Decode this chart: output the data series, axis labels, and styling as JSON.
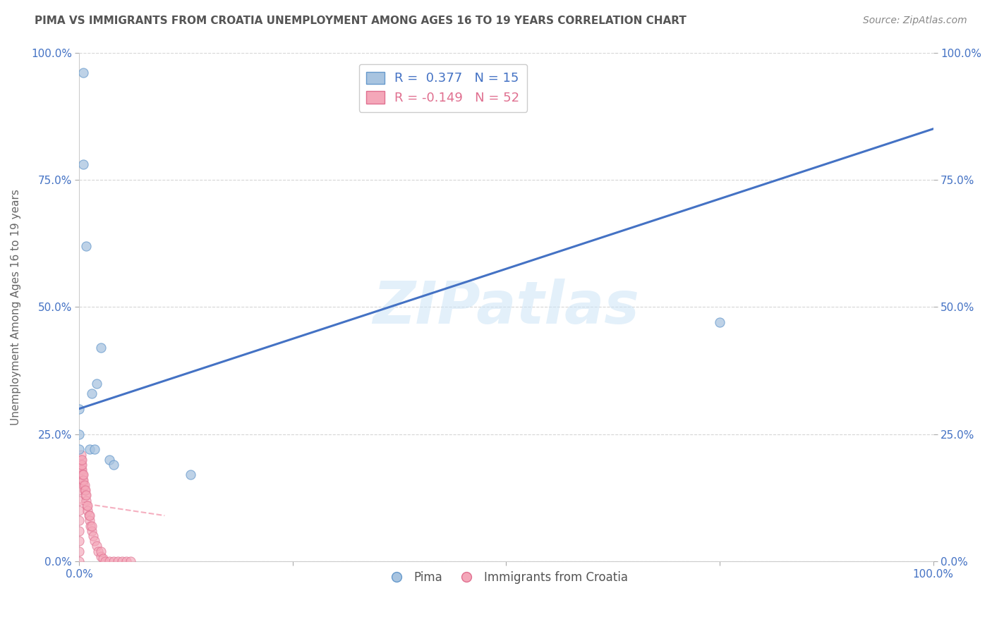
{
  "title": "PIMA VS IMMIGRANTS FROM CROATIA UNEMPLOYMENT AMONG AGES 16 TO 19 YEARS CORRELATION CHART",
  "source": "Source: ZipAtlas.com",
  "ylabel": "Unemployment Among Ages 16 to 19 years",
  "xlim": [
    0.0,
    1.0
  ],
  "ylim": [
    0.0,
    1.0
  ],
  "ytick_labels": [
    "0.0%",
    "25.0%",
    "50.0%",
    "75.0%",
    "100.0%"
  ],
  "ytick_positions": [
    0.0,
    0.25,
    0.5,
    0.75,
    1.0
  ],
  "pima_color": "#a8c4e0",
  "pima_edge_color": "#6699cc",
  "croatia_color": "#f4a7b9",
  "croatia_edge_color": "#e07090",
  "pima_line_color": "#4472c4",
  "croatia_line_color": "#f4a7b9",
  "watermark": "ZIPatlas",
  "legend_pima_text": "R =  0.377   N = 15",
  "legend_croatia_text": "R = -0.149   N = 52",
  "legend_pima_color": "#4472c4",
  "legend_croatia_color": "#e07090",
  "pima_line_x0": 0.0,
  "pima_line_y0": 0.3,
  "pima_line_x1": 1.0,
  "pima_line_y1": 0.85,
  "croatia_line_x0": 0.0,
  "croatia_line_y0": 0.115,
  "croatia_line_x1": 0.1,
  "croatia_line_y1": 0.09,
  "pima_x": [
    0.0,
    0.0,
    0.0,
    0.005,
    0.008,
    0.012,
    0.015,
    0.018,
    0.02,
    0.025,
    0.035,
    0.04,
    0.13,
    0.75,
    0.005
  ],
  "pima_y": [
    0.25,
    0.22,
    0.3,
    0.96,
    0.62,
    0.22,
    0.33,
    0.22,
    0.35,
    0.42,
    0.2,
    0.19,
    0.17,
    0.47,
    0.78
  ],
  "croatia_x": [
    0.0,
    0.0,
    0.0,
    0.0,
    0.0,
    0.0,
    0.0,
    0.0,
    0.0,
    0.0,
    0.002,
    0.002,
    0.002,
    0.002,
    0.003,
    0.003,
    0.003,
    0.003,
    0.004,
    0.004,
    0.005,
    0.005,
    0.005,
    0.006,
    0.006,
    0.007,
    0.007,
    0.008,
    0.008,
    0.009,
    0.01,
    0.01,
    0.011,
    0.012,
    0.012,
    0.013,
    0.015,
    0.015,
    0.016,
    0.018,
    0.02,
    0.022,
    0.025,
    0.025,
    0.028,
    0.03,
    0.035,
    0.04,
    0.045,
    0.05,
    0.055,
    0.06
  ],
  "croatia_y": [
    0.0,
    0.02,
    0.04,
    0.06,
    0.08,
    0.1,
    0.12,
    0.14,
    0.16,
    0.18,
    0.18,
    0.19,
    0.2,
    0.21,
    0.17,
    0.18,
    0.19,
    0.2,
    0.16,
    0.17,
    0.15,
    0.16,
    0.17,
    0.14,
    0.15,
    0.13,
    0.14,
    0.12,
    0.13,
    0.11,
    0.1,
    0.11,
    0.09,
    0.08,
    0.09,
    0.07,
    0.06,
    0.07,
    0.05,
    0.04,
    0.03,
    0.02,
    0.01,
    0.02,
    0.005,
    0.0,
    0.0,
    0.0,
    0.0,
    0.0,
    0.0,
    0.0
  ]
}
